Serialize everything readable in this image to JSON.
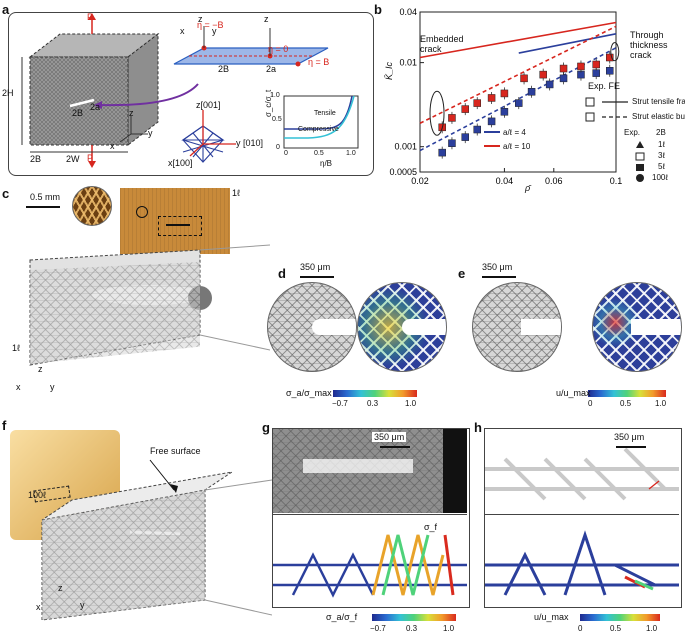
{
  "panels": {
    "a": {
      "label": "a",
      "P_top": "P",
      "P_bottom": "P",
      "dim_2H": "2H",
      "dim_2B_left": "2B",
      "dim_2W": "2W",
      "crack_2B": "2B",
      "crack_2a": "2a",
      "axis_z": "z",
      "axis_x": "x",
      "axis_y": "y",
      "inset_eta_neg": "η = −B",
      "inset_eta_zero": "η = 0",
      "inset_eta_pos": "η = B",
      "inset_2B": "2B",
      "inset_2a": "2a",
      "inset_z": "z",
      "inset_z2": "z",
      "inset_x": "x",
      "inset_y": "y",
      "crystal_z": "z[001]",
      "crystal_y": "y [010]",
      "crystal_x": "x[100]",
      "mini_ylabel": "σ_c/σ_t",
      "mini_xlabel": "η/B",
      "mini_tensile": "Tensile",
      "mini_compressive": "Compressive",
      "mini_y0": "0",
      "mini_y1": "0.5",
      "mini_y2": "1.0",
      "mini_x0": "0",
      "mini_x1": "0.5",
      "mini_x2": "1.0"
    },
    "b": {
      "label": "b",
      "embedded": "Embedded\ncrack",
      "through": "Through\nthickness\ncrack",
      "legend_title": "Exp. FE",
      "legend_strut_tensile": "Strut tensile fracture",
      "legend_strut_buckling": "Strut elastic buckling",
      "legend_a4": "a/ℓ = 4",
      "legend_a10": "a/ℓ = 10",
      "legend_exp_header": "Exp.",
      "legend_2B_header": "2B",
      "legend_1l": "1ℓ",
      "legend_3l": "3ℓ",
      "legend_5l": "5ℓ",
      "legend_100l": "100ℓ",
      "ylabel": "K̄_Ic",
      "xlabel": "ρ̄"
    },
    "c": {
      "label": "c",
      "scale": "0.5 mm",
      "dim_1l": "1ℓ",
      "dim_1l_b": "1ℓ",
      "axis_z": "z",
      "axis_x": "x",
      "axis_y": "y"
    },
    "d": {
      "label": "d",
      "scale": "350 μm",
      "cbar_label": "σ_a/σ_max",
      "tick0": "−0.7",
      "tick1": "0.3",
      "tick2": "1.0"
    },
    "e": {
      "label": "e",
      "scale": "350 μm",
      "cbar_label": "u/u_max",
      "tick0": "0",
      "tick1": "0.5",
      "tick2": "1.0"
    },
    "f": {
      "label": "f",
      "free_surface": "Free surface",
      "dim_100l": "100ℓ",
      "axis_z": "z",
      "axis_x": "x",
      "axis_y": "y"
    },
    "g": {
      "label": "g",
      "scale": "350 μm",
      "sigma_f": "σ_f",
      "cbar_label": "σ_a/σ_f",
      "tick0": "−0.7",
      "tick1": "0.3",
      "tick2": "1.0"
    },
    "h": {
      "label": "h",
      "scale": "350 μm",
      "cbar_label": "u/u_max",
      "tick0": "0",
      "tick1": "0.5",
      "tick2": "1.0"
    }
  },
  "chart_data": {
    "type": "scatter",
    "xscale": "log",
    "yscale": "log",
    "xlim": [
      0.02,
      0.1
    ],
    "ylim": [
      0.0005,
      0.04
    ],
    "x_ticks": [
      "0.02",
      "0.04",
      "0.06",
      "0.1"
    ],
    "y_ticks": [
      "0.0005",
      "0.001",
      "0.01",
      "0.04"
    ],
    "series": [
      {
        "name": "a/ℓ = 4",
        "color": "#2b3f9c",
        "points": [
          [
            0.024,
            0.00085
          ],
          [
            0.026,
            0.0011
          ],
          [
            0.029,
            0.0013
          ],
          [
            0.032,
            0.0016
          ],
          [
            0.036,
            0.002
          ],
          [
            0.04,
            0.0026
          ],
          [
            0.045,
            0.0033
          ],
          [
            0.05,
            0.0045
          ],
          [
            0.058,
            0.0055
          ],
          [
            0.065,
            0.0065
          ],
          [
            0.075,
            0.0072
          ],
          [
            0.085,
            0.0075
          ],
          [
            0.095,
            0.008
          ]
        ]
      },
      {
        "name": "a/ℓ = 10",
        "color": "#d7261e",
        "points": [
          [
            0.024,
            0.0017
          ],
          [
            0.026,
            0.0022
          ],
          [
            0.029,
            0.0028
          ],
          [
            0.032,
            0.0033
          ],
          [
            0.036,
            0.0038
          ],
          [
            0.04,
            0.0043
          ],
          [
            0.047,
            0.0065
          ],
          [
            0.055,
            0.0072
          ],
          [
            0.065,
            0.0085
          ],
          [
            0.075,
            0.009
          ],
          [
            0.085,
            0.0095
          ],
          [
            0.095,
            0.0115
          ]
        ]
      }
    ],
    "lines": [
      {
        "label": "Strut tensile fracture",
        "style": "solid",
        "color": "#d7261e",
        "from": [
          0.02,
          0.0115
        ],
        "to": [
          0.1,
          0.03
        ]
      },
      {
        "label": "Strut tensile fracture",
        "style": "solid",
        "color": "#2b3f9c",
        "from": [
          0.045,
          0.013
        ],
        "to": [
          0.1,
          0.022
        ]
      },
      {
        "label": "Strut elastic buckling",
        "style": "dashed",
        "color": "#d7261e",
        "from": [
          0.02,
          0.0019
        ],
        "to": [
          0.1,
          0.027
        ]
      },
      {
        "label": "Strut elastic buckling",
        "style": "dashed",
        "color": "#2b3f9c",
        "from": [
          0.02,
          0.0009
        ],
        "to": [
          0.1,
          0.015
        ]
      }
    ]
  }
}
